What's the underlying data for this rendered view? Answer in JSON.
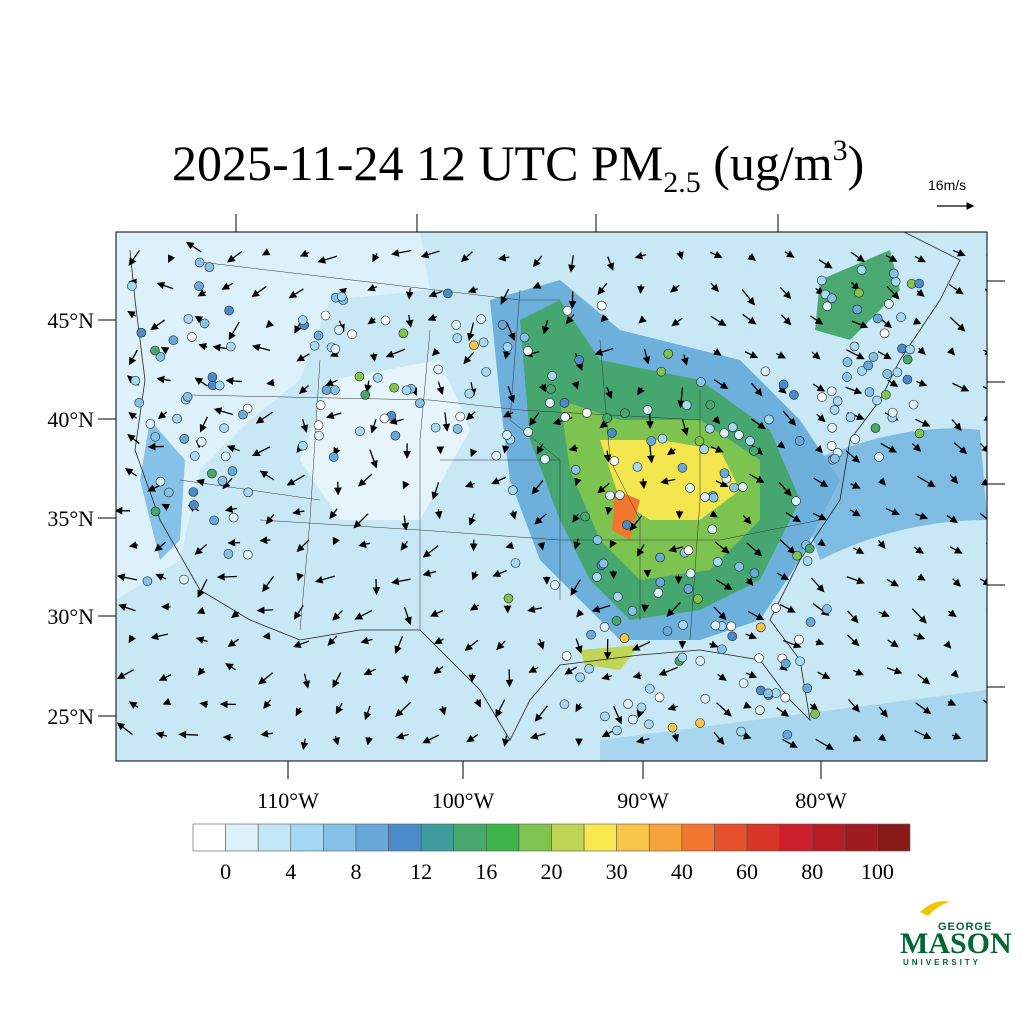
{
  "title": {
    "main": "2025-11-24 12 UTC PM",
    "sub": "2.5",
    "unit_open": " (ug/m",
    "sup": "3",
    "unit_close": ")"
  },
  "wind_reference": "16m/s",
  "lat_labels": [
    "45°N",
    "40°N",
    "35°N",
    "30°N",
    "25°N"
  ],
  "lon_labels": [
    "110°W",
    "100°W",
    "90°W",
    "80°W"
  ],
  "colorbar": {
    "colors": [
      "#ffffff",
      "#dcf1fa",
      "#c3e7f7",
      "#a5d8f2",
      "#86c2e8",
      "#68a8da",
      "#4b8bc9",
      "#3f9c9c",
      "#47a86e",
      "#3db54a",
      "#80c34f",
      "#c0d555",
      "#f6e84e",
      "#f8c44a",
      "#f7a33d",
      "#f2772e",
      "#e6512b",
      "#d83528",
      "#cc1f2b",
      "#b71c24",
      "#a01b1f",
      "#8a1a1a"
    ],
    "labels": [
      "0",
      "4",
      "8",
      "12",
      "16",
      "20",
      "30",
      "40",
      "60",
      "80",
      "100"
    ]
  },
  "logo": {
    "top": "GEORGE",
    "main": "MASON",
    "bottom": "UNIVERSITY"
  }
}
